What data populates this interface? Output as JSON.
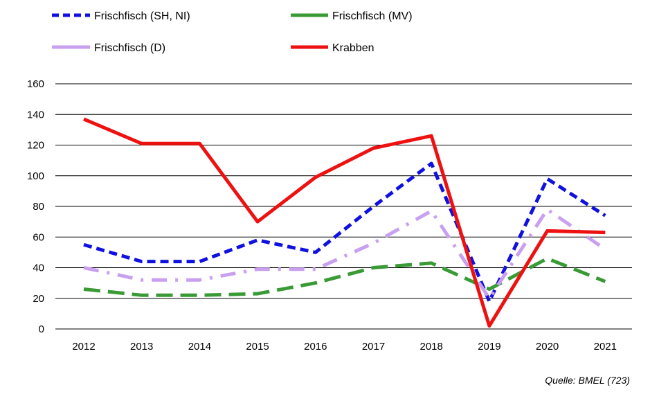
{
  "chart_data": {
    "type": "line",
    "categories": [
      "2012",
      "2013",
      "2014",
      "2015",
      "2016",
      "2017",
      "2018",
      "2019",
      "2020",
      "2021"
    ],
    "ylim": [
      0,
      160
    ],
    "yticks": [
      "0",
      "20",
      "40",
      "60",
      "80",
      "100",
      "120",
      "140",
      "160"
    ],
    "grid": "horizontal",
    "legend_position": "top",
    "series": [
      {
        "name": "Frischfisch (SH, NI)",
        "color": "#1010e0",
        "dash": "dashed",
        "values": [
          55,
          44,
          44,
          58,
          50,
          80,
          108,
          18,
          98,
          74
        ]
      },
      {
        "name": "Frischfisch (MV)",
        "color": "#3a9a35",
        "dash": "long-dash",
        "values": [
          26,
          22,
          22,
          23,
          30,
          40,
          43,
          26,
          46,
          31
        ]
      },
      {
        "name": "Frischfisch (D)",
        "color": "#c9a0f0",
        "dash": "dash-dot",
        "values": [
          40,
          32,
          32,
          39,
          39,
          56,
          77,
          20,
          78,
          52
        ]
      },
      {
        "name": "Krabben",
        "color": "#ee1111",
        "dash": "solid",
        "values": [
          137,
          121,
          121,
          70,
          99,
          118,
          126,
          2,
          64,
          63
        ]
      }
    ],
    "source": "Quelle: BMEL (723)"
  }
}
